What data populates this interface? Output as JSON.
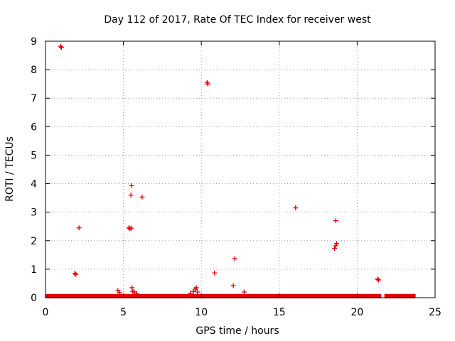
{
  "chart_data": {
    "type": "scatter",
    "title": "Day 112 of 2017, Rate Of TEC Index for receiver west",
    "xlabel": "GPS time / hours",
    "ylabel": "ROTI / TECUs",
    "xlim": [
      0,
      25
    ],
    "ylim": [
      0,
      9
    ],
    "xticks": [
      0,
      5,
      10,
      15,
      20,
      25
    ],
    "xtick_labels": [
      "0",
      "5",
      "10",
      "15",
      "20",
      "25"
    ],
    "yticks": [
      0,
      1,
      2,
      3,
      4,
      5,
      6,
      7,
      8,
      9
    ],
    "ytick_labels": [
      "0",
      "1",
      "2",
      "3",
      "4",
      "5",
      "6",
      "7",
      "8",
      "9"
    ],
    "grid": true,
    "marker": "plus",
    "color": "#e00000",
    "baseline_band": {
      "x_start": 0.0,
      "x_end": 23.75,
      "y_min": 0.0,
      "y_max": 0.08,
      "gap": [
        21.55,
        21.75
      ]
    },
    "series": [
      {
        "name": "ROTI",
        "points": [
          {
            "x": 0.97,
            "y": 8.82
          },
          {
            "x": 1.02,
            "y": 8.78
          },
          {
            "x": 1.88,
            "y": 0.85
          },
          {
            "x": 1.95,
            "y": 0.82
          },
          {
            "x": 2.15,
            "y": 2.45
          },
          {
            "x": 4.65,
            "y": 0.25
          },
          {
            "x": 4.75,
            "y": 0.18
          },
          {
            "x": 5.35,
            "y": 2.45
          },
          {
            "x": 5.42,
            "y": 2.42
          },
          {
            "x": 5.5,
            "y": 2.44
          },
          {
            "x": 5.48,
            "y": 3.6
          },
          {
            "x": 5.52,
            "y": 3.93
          },
          {
            "x": 5.55,
            "y": 0.35
          },
          {
            "x": 5.6,
            "y": 0.22
          },
          {
            "x": 5.7,
            "y": 0.2
          },
          {
            "x": 5.85,
            "y": 0.15
          },
          {
            "x": 6.2,
            "y": 3.53
          },
          {
            "x": 9.3,
            "y": 0.15
          },
          {
            "x": 9.5,
            "y": 0.22
          },
          {
            "x": 9.6,
            "y": 0.3
          },
          {
            "x": 9.68,
            "y": 0.35
          },
          {
            "x": 9.75,
            "y": 0.2
          },
          {
            "x": 10.37,
            "y": 7.55
          },
          {
            "x": 10.42,
            "y": 7.5
          },
          {
            "x": 10.85,
            "y": 0.87
          },
          {
            "x": 12.05,
            "y": 0.42
          },
          {
            "x": 12.15,
            "y": 1.37
          },
          {
            "x": 12.75,
            "y": 0.2
          },
          {
            "x": 16.05,
            "y": 3.15
          },
          {
            "x": 18.55,
            "y": 1.73
          },
          {
            "x": 18.62,
            "y": 1.82
          },
          {
            "x": 18.68,
            "y": 1.9
          },
          {
            "x": 18.63,
            "y": 2.7
          },
          {
            "x": 21.3,
            "y": 0.65
          },
          {
            "x": 21.38,
            "y": 0.62
          }
        ]
      }
    ]
  }
}
